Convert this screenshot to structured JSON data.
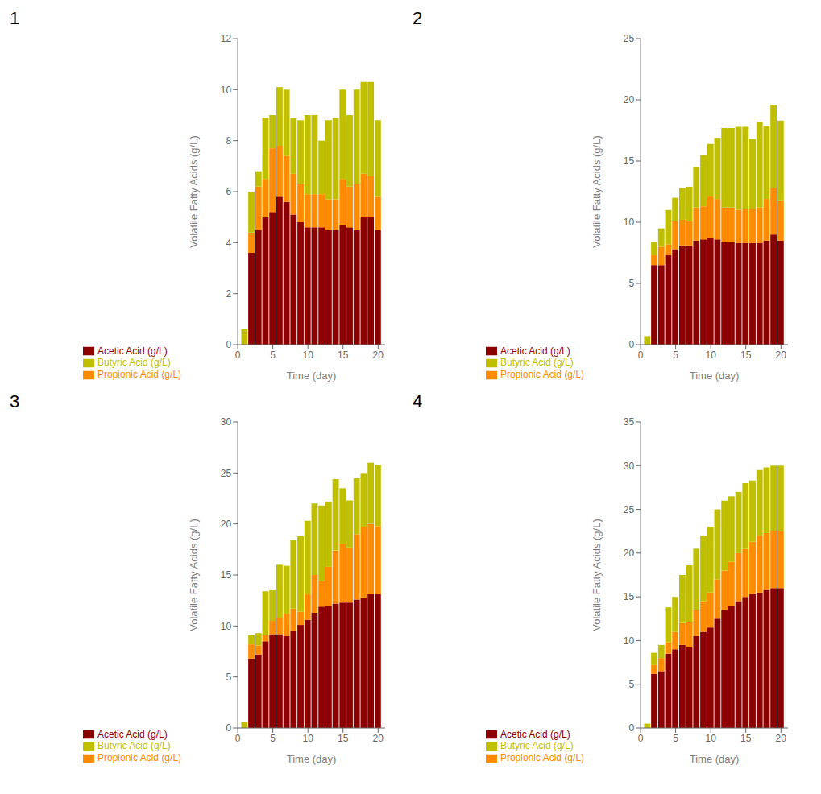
{
  "chart_data": [
    {
      "type": "bar",
      "title": "1",
      "stacked": true,
      "grid": false,
      "legend": "bottom",
      "x_label": "Time (day)",
      "y_label": "Volatile Fatty Acids (g/L)",
      "x": [
        1,
        2,
        3,
        4,
        5,
        6,
        7,
        8,
        9,
        10,
        11,
        12,
        13,
        14,
        15,
        16,
        17,
        18,
        19,
        20
      ],
      "xlim": [
        0,
        21
      ],
      "xticks": [
        0,
        5,
        10,
        15,
        20
      ],
      "ylim": [
        0,
        12
      ],
      "yticks": [
        0,
        2,
        4,
        6,
        8,
        10,
        12
      ],
      "series": [
        {
          "name": "Acetic Acid (g/L)",
          "color": "#8B0000",
          "values": [
            0.0,
            3.6,
            4.5,
            5.0,
            5.2,
            5.8,
            5.6,
            5.1,
            4.8,
            4.6,
            4.6,
            4.6,
            4.5,
            4.5,
            4.7,
            4.6,
            4.5,
            5.0,
            5.0,
            4.5
          ]
        },
        {
          "name": "Propionic Acid (g/L)",
          "color": "#FF8C00",
          "values": [
            0.0,
            0.8,
            1.7,
            1.5,
            2.5,
            2.0,
            1.8,
            1.6,
            1.5,
            1.3,
            1.3,
            1.3,
            1.2,
            1.2,
            1.8,
            1.6,
            1.8,
            1.7,
            1.6,
            1.3
          ]
        },
        {
          "name": "Butyric Acid (g/L)",
          "color": "#BFBF00",
          "values": [
            0.6,
            1.6,
            0.6,
            2.4,
            1.3,
            2.3,
            2.6,
            2.2,
            2.5,
            3.1,
            3.1,
            2.1,
            3.1,
            3.2,
            3.5,
            2.8,
            3.7,
            3.6,
            3.7,
            3.0
          ]
        }
      ]
    },
    {
      "type": "bar",
      "title": "2",
      "stacked": true,
      "grid": false,
      "legend": "bottom",
      "x_label": "Time (day)",
      "y_label": "Volatile Fatty Acids (g/L)",
      "x": [
        1,
        2,
        3,
        4,
        5,
        6,
        7,
        8,
        9,
        10,
        11,
        12,
        13,
        14,
        15,
        16,
        17,
        18,
        19,
        20
      ],
      "xlim": [
        0,
        21
      ],
      "xticks": [
        0,
        5,
        10,
        15,
        20
      ],
      "ylim": [
        0,
        25
      ],
      "yticks": [
        0,
        5,
        10,
        15,
        20,
        25
      ],
      "series": [
        {
          "name": "Acetic Acid (g/L)",
          "color": "#8B0000",
          "values": [
            0.0,
            6.5,
            6.5,
            7.3,
            7.8,
            8.1,
            8.1,
            8.5,
            8.6,
            8.7,
            8.6,
            8.4,
            8.4,
            8.3,
            8.3,
            8.3,
            8.3,
            8.5,
            9.0,
            8.5
          ]
        },
        {
          "name": "Propionic Acid (g/L)",
          "color": "#FF8C00",
          "values": [
            0.0,
            0.8,
            1.5,
            0.9,
            2.3,
            2.1,
            2.0,
            2.7,
            2.7,
            3.4,
            3.3,
            2.8,
            2.8,
            2.7,
            2.8,
            2.8,
            2.9,
            3.4,
            3.8,
            3.3
          ]
        },
        {
          "name": "Butyric Acid (g/L)",
          "color": "#BFBF00",
          "values": [
            0.7,
            1.1,
            1.5,
            2.8,
            1.9,
            2.6,
            2.8,
            3.3,
            4.2,
            4.3,
            5.0,
            6.5,
            6.5,
            6.8,
            6.7,
            5.7,
            7.0,
            6.0,
            6.8,
            6.5
          ]
        }
      ]
    },
    {
      "type": "bar",
      "title": "3",
      "stacked": true,
      "grid": false,
      "legend": "bottom",
      "x_label": "Time (day)",
      "y_label": "Volatile Fatty Acids (g/L)",
      "x": [
        1,
        2,
        3,
        4,
        5,
        6,
        7,
        8,
        9,
        10,
        11,
        12,
        13,
        14,
        15,
        16,
        17,
        18,
        19,
        20
      ],
      "xlim": [
        0,
        21
      ],
      "xticks": [
        0,
        5,
        10,
        15,
        20
      ],
      "ylim": [
        0,
        30
      ],
      "yticks": [
        0,
        5,
        10,
        15,
        20,
        25,
        30
      ],
      "series": [
        {
          "name": "Acetic Acid (g/L)",
          "color": "#8B0000",
          "values": [
            0.0,
            6.8,
            7.2,
            8.5,
            9.2,
            9.2,
            9.0,
            9.5,
            10.1,
            10.6,
            11.3,
            11.9,
            12.0,
            12.2,
            12.3,
            12.3,
            12.6,
            12.8,
            13.1,
            13.1
          ]
        },
        {
          "name": "Propionic Acid (g/L)",
          "color": "#FF8C00",
          "values": [
            0.0,
            1.4,
            0.9,
            0.6,
            1.3,
            1.6,
            2.2,
            2.2,
            1.3,
            2.5,
            3.7,
            2.5,
            3.8,
            5.2,
            5.7,
            5.4,
            6.4,
            6.9,
            6.9,
            6.7
          ]
        },
        {
          "name": "Butyric Acid (g/L)",
          "color": "#BFBF00",
          "values": [
            0.6,
            0.9,
            1.2,
            4.3,
            3.0,
            5.2,
            4.7,
            6.7,
            7.4,
            7.2,
            7.0,
            7.4,
            6.4,
            7.0,
            5.5,
            4.6,
            5.5,
            5.3,
            6.0,
            6.0
          ]
        }
      ]
    },
    {
      "type": "bar",
      "title": "4",
      "stacked": true,
      "grid": false,
      "legend": "bottom",
      "x_label": "Time (day)",
      "y_label": "Volatile Fatty Acids (g/L)",
      "x": [
        1,
        2,
        3,
        4,
        5,
        6,
        7,
        8,
        9,
        10,
        11,
        12,
        13,
        14,
        15,
        16,
        17,
        18,
        19,
        20
      ],
      "xlim": [
        0,
        21
      ],
      "xticks": [
        0,
        5,
        10,
        15,
        20
      ],
      "ylim": [
        0,
        35
      ],
      "yticks": [
        0,
        5,
        10,
        15,
        20,
        25,
        30,
        35
      ],
      "series": [
        {
          "name": "Acetic Acid (g/L)",
          "color": "#8B0000",
          "values": [
            0.0,
            6.2,
            6.5,
            8.5,
            9.0,
            9.5,
            9.3,
            10.5,
            11.0,
            11.5,
            12.5,
            13.5,
            14.0,
            14.5,
            15.0,
            15.3,
            15.5,
            15.8,
            16.0,
            16.0
          ]
        },
        {
          "name": "Propionic Acid (g/L)",
          "color": "#FF8C00",
          "values": [
            0.0,
            1.0,
            1.5,
            1.3,
            2.0,
            2.5,
            2.8,
            3.0,
            3.5,
            4.0,
            4.5,
            4.5,
            5.0,
            5.5,
            5.5,
            6.0,
            6.5,
            6.5,
            6.5,
            6.5
          ]
        },
        {
          "name": "Butyric Acid (g/L)",
          "color": "#BFBF00",
          "values": [
            0.5,
            1.4,
            1.5,
            4.0,
            4.0,
            5.5,
            6.5,
            7.0,
            7.5,
            7.5,
            8.0,
            8.0,
            7.5,
            7.0,
            7.5,
            7.0,
            7.5,
            7.5,
            7.5,
            7.5
          ]
        }
      ]
    }
  ]
}
